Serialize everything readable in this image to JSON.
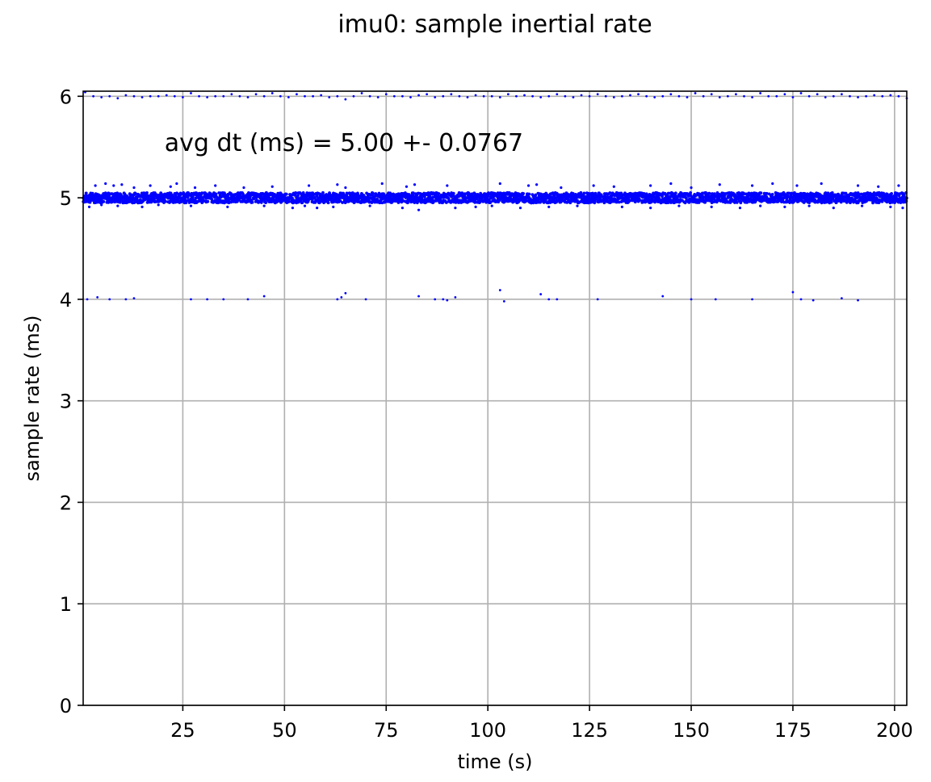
{
  "chart_data": {
    "type": "scatter",
    "title": "imu0: sample inertial rate",
    "xlabel": "time (s)",
    "ylabel": "sample rate (ms)",
    "xlim": [
      0.5,
      203
    ],
    "ylim": [
      0,
      6.05
    ],
    "xticks": [
      25,
      50,
      75,
      100,
      125,
      150,
      175,
      200
    ],
    "xtick_labels": [
      "25",
      "50",
      "75",
      "100",
      "125",
      "150",
      "175",
      "200"
    ],
    "yticks": [
      0,
      1,
      2,
      3,
      4,
      5,
      6
    ],
    "ytick_labels": [
      "0",
      "1",
      "2",
      "3",
      "4",
      "5",
      "6"
    ],
    "grid": true,
    "legend": "none",
    "annotation": "avg dt (ms) = 5.00 +- 0.0767",
    "marker_color": "#0000ff",
    "series": [
      {
        "values_description_points": [],
        "points_main_band": {
          "y_center": 5.0,
          "y_spread": 0.05,
          "x_start": 0.5,
          "x_end": 203
        },
        "points_upper_outliers": [
          [
            3.5,
            5.12
          ],
          [
            6,
            5.14
          ],
          [
            8,
            5.12
          ],
          [
            10,
            5.13
          ],
          [
            13,
            5.1
          ],
          [
            17,
            5.12
          ],
          [
            22,
            5.11
          ],
          [
            23.5,
            5.14
          ],
          [
            28,
            5.1
          ],
          [
            33,
            5.12
          ],
          [
            40,
            5.1
          ],
          [
            47,
            5.11
          ],
          [
            56,
            5.12
          ],
          [
            63,
            5.13
          ],
          [
            65,
            5.1
          ],
          [
            74,
            5.14
          ],
          [
            80,
            5.11
          ],
          [
            82,
            5.13
          ],
          [
            90,
            5.12
          ],
          [
            103,
            5.14
          ],
          [
            110,
            5.12
          ],
          [
            112,
            5.13
          ],
          [
            118,
            5.1
          ],
          [
            126,
            5.12
          ],
          [
            131,
            5.11
          ],
          [
            140,
            5.12
          ],
          [
            145,
            5.14
          ],
          [
            150,
            5.1
          ],
          [
            157,
            5.13
          ],
          [
            165,
            5.12
          ],
          [
            170,
            5.14
          ],
          [
            176,
            5.12
          ],
          [
            182,
            5.14
          ],
          [
            191,
            5.12
          ],
          [
            196,
            5.11
          ],
          [
            201,
            5.12
          ]
        ],
        "points_lower_outliers": [
          [
            2,
            4.91
          ],
          [
            5,
            4.93
          ],
          [
            9,
            4.92
          ],
          [
            15,
            4.91
          ],
          [
            19,
            4.93
          ],
          [
            27,
            4.92
          ],
          [
            36,
            4.91
          ],
          [
            45,
            4.92
          ],
          [
            52,
            4.9
          ],
          [
            55,
            4.92
          ],
          [
            58,
            4.9
          ],
          [
            62,
            4.91
          ],
          [
            71,
            4.92
          ],
          [
            79,
            4.9
          ],
          [
            83,
            4.88
          ],
          [
            92,
            4.9
          ],
          [
            97,
            4.91
          ],
          [
            101,
            4.92
          ],
          [
            108,
            4.9
          ],
          [
            115,
            4.91
          ],
          [
            122,
            4.92
          ],
          [
            133,
            4.91
          ],
          [
            140,
            4.9
          ],
          [
            147,
            4.92
          ],
          [
            155,
            4.91
          ],
          [
            162,
            4.9
          ],
          [
            167,
            4.92
          ],
          [
            173,
            4.91
          ],
          [
            179,
            4.92
          ],
          [
            185,
            4.9
          ],
          [
            192,
            4.92
          ],
          [
            199,
            4.91
          ],
          [
            202,
            4.9
          ]
        ],
        "points_level_6": [
          [
            1,
            6.04
          ],
          [
            3,
            6.0
          ],
          [
            5,
            5.99
          ],
          [
            7,
            6.0
          ],
          [
            9,
            5.98
          ],
          [
            11,
            6.01
          ],
          [
            13,
            6.0
          ],
          [
            15,
            5.99
          ],
          [
            17,
            6.0
          ],
          [
            19,
            6.0
          ],
          [
            21,
            6.01
          ],
          [
            23,
            6.0
          ],
          [
            25,
            5.99
          ],
          [
            27,
            6.03
          ],
          [
            29,
            6.0
          ],
          [
            31,
            5.99
          ],
          [
            33,
            6.0
          ],
          [
            35,
            6.0
          ],
          [
            37,
            6.02
          ],
          [
            39,
            6.0
          ],
          [
            41,
            5.99
          ],
          [
            43,
            6.02
          ],
          [
            45,
            6.0
          ],
          [
            47,
            6.03
          ],
          [
            49,
            6.0
          ],
          [
            51,
            5.99
          ],
          [
            53,
            6.02
          ],
          [
            55,
            6.0
          ],
          [
            57,
            6.0
          ],
          [
            59,
            6.01
          ],
          [
            61,
            5.99
          ],
          [
            63,
            6.0
          ],
          [
            65,
            5.97
          ],
          [
            67,
            6.0
          ],
          [
            69,
            6.03
          ],
          [
            71,
            6.0
          ],
          [
            73,
            5.99
          ],
          [
            75,
            6.02
          ],
          [
            77,
            6.0
          ],
          [
            79,
            6.0
          ],
          [
            81,
            5.99
          ],
          [
            83,
            6.01
          ],
          [
            85,
            6.02
          ],
          [
            87,
            5.99
          ],
          [
            89,
            6.0
          ],
          [
            91,
            6.02
          ],
          [
            93,
            6.0
          ],
          [
            95,
            5.99
          ],
          [
            97,
            6.01
          ],
          [
            99,
            6.0
          ],
          [
            101,
            6.0
          ],
          [
            103,
            5.99
          ],
          [
            105,
            6.02
          ],
          [
            107,
            6.0
          ],
          [
            109,
            6.01
          ],
          [
            111,
            6.0
          ],
          [
            113,
            5.99
          ],
          [
            115,
            6.0
          ],
          [
            117,
            6.02
          ],
          [
            119,
            6.0
          ],
          [
            121,
            5.99
          ],
          [
            123,
            6.01
          ],
          [
            125,
            6.0
          ],
          [
            127,
            6.02
          ],
          [
            129,
            6.0
          ],
          [
            131,
            5.99
          ],
          [
            133,
            6.0
          ],
          [
            135,
            6.01
          ],
          [
            137,
            6.02
          ],
          [
            139,
            6.0
          ],
          [
            141,
            5.99
          ],
          [
            143,
            6.0
          ],
          [
            145,
            6.02
          ],
          [
            147,
            6.0
          ],
          [
            149,
            5.99
          ],
          [
            151,
            6.03
          ],
          [
            153,
            6.0
          ],
          [
            155,
            6.02
          ],
          [
            157,
            5.99
          ],
          [
            159,
            6.0
          ],
          [
            161,
            6.02
          ],
          [
            163,
            6.0
          ],
          [
            165,
            5.99
          ],
          [
            167,
            6.03
          ],
          [
            169,
            6.0
          ],
          [
            171,
            6.0
          ],
          [
            173,
            6.02
          ],
          [
            175,
            5.99
          ],
          [
            177,
            6.03
          ],
          [
            179,
            6.0
          ],
          [
            181,
            6.02
          ],
          [
            183,
            5.99
          ],
          [
            185,
            6.0
          ],
          [
            187,
            6.02
          ],
          [
            189,
            6.0
          ],
          [
            191,
            5.99
          ],
          [
            193,
            6.0
          ],
          [
            195,
            6.01
          ],
          [
            197,
            6.0
          ],
          [
            199,
            6.01
          ],
          [
            201,
            6.0
          ],
          [
            203,
            5.98
          ]
        ],
        "points_level_4": [
          [
            1.5,
            4.0
          ],
          [
            4,
            4.02
          ],
          [
            7,
            4.0
          ],
          [
            11,
            4.0
          ],
          [
            13,
            4.01
          ],
          [
            27,
            4.0
          ],
          [
            31,
            4.0
          ],
          [
            35,
            4.0
          ],
          [
            41,
            4.0
          ],
          [
            45,
            4.03
          ],
          [
            63,
            4.0
          ],
          [
            64,
            4.02
          ],
          [
            65,
            4.06
          ],
          [
            70,
            4.0
          ],
          [
            83,
            4.03
          ],
          [
            87,
            4.0
          ],
          [
            89,
            4.0
          ],
          [
            90,
            3.99
          ],
          [
            92,
            4.02
          ],
          [
            103,
            4.09
          ],
          [
            104,
            3.98
          ],
          [
            113,
            4.05
          ],
          [
            115,
            4.0
          ],
          [
            117,
            4.0
          ],
          [
            127,
            4.0
          ],
          [
            143,
            4.03
          ],
          [
            150,
            4.0
          ],
          [
            156,
            4.0
          ],
          [
            165,
            4.0
          ],
          [
            175,
            4.07
          ],
          [
            177,
            4.0
          ],
          [
            180,
            3.99
          ],
          [
            187,
            4.01
          ],
          [
            191,
            3.99
          ]
        ]
      }
    ]
  }
}
